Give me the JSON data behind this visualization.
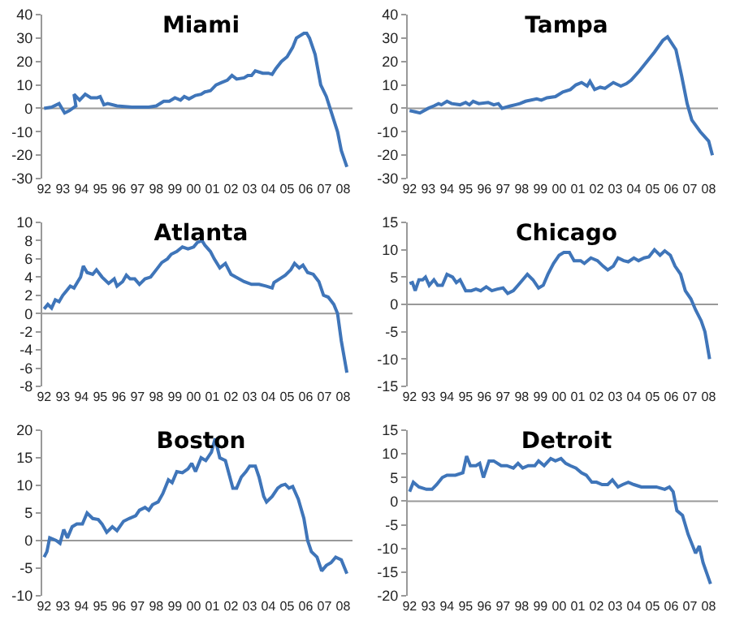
{
  "chart_data": [
    {
      "type": "line",
      "title": "Miami",
      "color": "#3f75b9",
      "grid": false,
      "ref_lines": [
        {
          "axis": "y",
          "value": 0,
          "color": "#999999"
        }
      ],
      "xlim": [
        1991.9,
        2008.5
      ],
      "ylim": [
        -30,
        40
      ],
      "yticks": [
        -30,
        -20,
        -10,
        0,
        10,
        20,
        30,
        40
      ],
      "xticks": [
        {
          "value": 1992,
          "label": "92"
        },
        {
          "value": 1993,
          "label": "93"
        },
        {
          "value": 1994,
          "label": "94"
        },
        {
          "value": 1995,
          "label": "95"
        },
        {
          "value": 1996,
          "label": "96"
        },
        {
          "value": 1997,
          "label": "97"
        },
        {
          "value": 1998,
          "label": "98"
        },
        {
          "value": 1999,
          "label": "99"
        },
        {
          "value": 2000,
          "label": "00"
        },
        {
          "value": 2001,
          "label": "01"
        },
        {
          "value": 2002,
          "label": "02"
        },
        {
          "value": 2003,
          "label": "03"
        },
        {
          "value": 2004,
          "label": "04"
        },
        {
          "value": 2005,
          "label": "05"
        },
        {
          "value": 2006,
          "label": "06"
        },
        {
          "value": 2007,
          "label": "07"
        },
        {
          "value": 2008,
          "label": "08"
        }
      ],
      "x": [
        1992,
        1992.4,
        1992.8,
        1993.1,
        1993.35,
        1993.7,
        1993.6,
        1993.9,
        1994.2,
        1994.5,
        1994.85,
        1995.0,
        1995.2,
        1995.4,
        1995.9,
        1996.7,
        1997.6,
        1998.0,
        1998.4,
        1998.7,
        1999.0,
        1999.3,
        1999.5,
        1999.75,
        2000.1,
        2000.4,
        2000.6,
        2000.9,
        2001.2,
        2001.5,
        2001.8,
        2002.05,
        2002.3,
        2002.7,
        2002.9,
        2003.1,
        2003.3,
        2003.7,
        2004.0,
        2004.2,
        2004.4,
        2004.7,
        2005.0,
        2005.3,
        2005.5,
        2005.9,
        2006.05,
        2006.2,
        2006.5,
        2006.8,
        2007.1,
        2007.3,
        2007.5,
        2007.7,
        2007.9,
        2008.2
      ],
      "values": [
        0,
        0.5,
        2,
        -2,
        -1,
        1,
        6,
        3.5,
        6,
        4.5,
        4.5,
        5,
        1.5,
        2,
        1,
        0.5,
        0.5,
        1,
        3,
        3,
        4.5,
        3.5,
        5,
        4,
        5.5,
        6,
        7,
        7.5,
        10,
        11,
        12,
        14,
        12.5,
        13,
        14,
        14,
        16,
        15,
        15,
        14.5,
        17,
        20,
        22,
        26,
        30,
        32,
        32,
        30,
        23,
        10,
        5,
        0,
        -5,
        -10,
        -18,
        -25
      ]
    },
    {
      "type": "line",
      "title": "Tampa",
      "color": "#3f75b9",
      "grid": false,
      "ref_lines": [
        {
          "axis": "y",
          "value": 0,
          "color": "#999999"
        }
      ],
      "xlim": [
        1991.9,
        2008.5
      ],
      "ylim": [
        -30,
        40
      ],
      "yticks": [
        -30,
        -20,
        -10,
        0,
        10,
        20,
        30,
        40
      ],
      "xticks": [
        {
          "value": 1992,
          "label": "92"
        },
        {
          "value": 1993,
          "label": "93"
        },
        {
          "value": 1994,
          "label": "94"
        },
        {
          "value": 1995,
          "label": "95"
        },
        {
          "value": 1996,
          "label": "96"
        },
        {
          "value": 1997,
          "label": "97"
        },
        {
          "value": 1998,
          "label": "98"
        },
        {
          "value": 1999,
          "label": "99"
        },
        {
          "value": 2000,
          "label": "00"
        },
        {
          "value": 2001,
          "label": "01"
        },
        {
          "value": 2002,
          "label": "02"
        },
        {
          "value": 2003,
          "label": "03"
        },
        {
          "value": 2004,
          "label": "04"
        },
        {
          "value": 2005,
          "label": "05"
        },
        {
          "value": 2006,
          "label": "06"
        },
        {
          "value": 2007,
          "label": "07"
        },
        {
          "value": 2008,
          "label": "08"
        }
      ],
      "x": [
        1992,
        1992.3,
        1992.55,
        1993.0,
        1993.3,
        1993.55,
        1993.7,
        1994.0,
        1994.25,
        1994.7,
        1995.0,
        1995.2,
        1995.4,
        1995.7,
        1996.2,
        1996.5,
        1996.75,
        1996.95,
        1997.4,
        1997.65,
        1997.9,
        1998.2,
        1998.8,
        1999.05,
        1999.35,
        1999.8,
        2000.2,
        2000.6,
        2000.9,
        2001.2,
        2001.5,
        2001.65,
        2001.9,
        2002.2,
        2002.45,
        2002.9,
        2003.3,
        2003.6,
        2003.85,
        2004.3,
        2004.7,
        2005.1,
        2005.55,
        2005.8,
        2006.25,
        2006.55,
        2006.85,
        2007.1,
        2007.55,
        2008.0,
        2008.2
      ],
      "values": [
        -1,
        -1.5,
        -2,
        0,
        1,
        2,
        1.5,
        3,
        2,
        1.5,
        2.5,
        1.5,
        3,
        2,
        2.5,
        1.5,
        2,
        0,
        1,
        1.5,
        2,
        3,
        4,
        3.5,
        4.5,
        5,
        7,
        8,
        10,
        11,
        9.5,
        11.5,
        8,
        9,
        8.5,
        11,
        9.5,
        10.5,
        12,
        16,
        20,
        24,
        29,
        30.5,
        25,
        14,
        2,
        -5,
        -10,
        -14,
        -20
      ]
    },
    {
      "type": "line",
      "title": "Atlanta",
      "color": "#3f75b9",
      "grid": false,
      "ref_lines": [
        {
          "axis": "y",
          "value": 0,
          "color": "#999999"
        }
      ],
      "xlim": [
        1991.9,
        2008.5
      ],
      "ylim": [
        -8,
        10
      ],
      "yticks": [
        -8,
        -6,
        -4,
        -2,
        0,
        2,
        4,
        6,
        8,
        10
      ],
      "xticks": [
        {
          "value": 1992,
          "label": "92"
        },
        {
          "value": 1993,
          "label": "93"
        },
        {
          "value": 1994,
          "label": "94"
        },
        {
          "value": 1995,
          "label": "95"
        },
        {
          "value": 1996,
          "label": "96"
        },
        {
          "value": 1997,
          "label": "97"
        },
        {
          "value": 1998,
          "label": "98"
        },
        {
          "value": 1999,
          "label": "99"
        },
        {
          "value": 2000,
          "label": "00"
        },
        {
          "value": 2001,
          "label": "01"
        },
        {
          "value": 2002,
          "label": "02"
        },
        {
          "value": 2003,
          "label": "03"
        },
        {
          "value": 2004,
          "label": "04"
        },
        {
          "value": 2005,
          "label": "05"
        },
        {
          "value": 2006,
          "label": "06"
        },
        {
          "value": 2007,
          "label": "07"
        },
        {
          "value": 2008,
          "label": "08"
        }
      ],
      "x": [
        1992,
        1992.2,
        1992.4,
        1992.6,
        1992.8,
        1993.0,
        1993.2,
        1993.4,
        1993.6,
        1993.8,
        1993.95,
        1994.1,
        1994.3,
        1994.6,
        1994.8,
        1995.1,
        1995.45,
        1995.75,
        1995.9,
        1996.2,
        1996.4,
        1996.6,
        1996.85,
        1997.1,
        1997.4,
        1997.7,
        1998.0,
        1998.3,
        1998.6,
        1998.8,
        1999.1,
        1999.4,
        1999.7,
        2000.0,
        2000.2,
        2000.45,
        2000.6,
        2000.9,
        2001.1,
        2001.4,
        2001.7,
        2002.0,
        2002.25,
        2002.7,
        2003.1,
        2003.5,
        2003.9,
        2004.2,
        2004.3,
        2004.6,
        2004.9,
        2005.2,
        2005.4,
        2005.65,
        2005.85,
        2006.1,
        2006.4,
        2006.7,
        2006.95,
        2007.2,
        2007.5,
        2007.7,
        2007.9,
        2008.2
      ],
      "values": [
        0.5,
        1,
        0.6,
        1.5,
        1.3,
        2,
        2.5,
        3,
        2.8,
        3.5,
        4,
        5.2,
        4.5,
        4.3,
        4.8,
        4,
        3.3,
        3.8,
        3,
        3.5,
        4.2,
        3.8,
        3.8,
        3.2,
        3.8,
        4,
        4.8,
        5.6,
        6,
        6.5,
        6.8,
        7.3,
        7.1,
        7.3,
        7.8,
        8,
        7.5,
        6.8,
        6,
        5,
        5.5,
        4.3,
        4,
        3.5,
        3.2,
        3.2,
        3,
        2.8,
        3.4,
        3.8,
        4.2,
        4.8,
        5.5,
        5,
        5.3,
        4.5,
        4.3,
        3.5,
        2,
        1.8,
        1,
        0,
        -3,
        -6.5
      ]
    },
    {
      "type": "line",
      "title": "Chicago",
      "color": "#3f75b9",
      "grid": false,
      "ref_lines": [
        {
          "axis": "y",
          "value": 0,
          "color": "#999999"
        }
      ],
      "xlim": [
        1991.9,
        2008.5
      ],
      "ylim": [
        -15,
        15
      ],
      "yticks": [
        -15,
        -10,
        -5,
        0,
        5,
        10,
        15
      ],
      "xticks": [
        {
          "value": 1992,
          "label": "92"
        },
        {
          "value": 1993,
          "label": "93"
        },
        {
          "value": 1994,
          "label": "94"
        },
        {
          "value": 1995,
          "label": "95"
        },
        {
          "value": 1996,
          "label": "96"
        },
        {
          "value": 1997,
          "label": "97"
        },
        {
          "value": 1998,
          "label": "98"
        },
        {
          "value": 1999,
          "label": "99"
        },
        {
          "value": 2000,
          "label": "00"
        },
        {
          "value": 2001,
          "label": "01"
        },
        {
          "value": 2002,
          "label": "02"
        },
        {
          "value": 2003,
          "label": "03"
        },
        {
          "value": 2004,
          "label": "04"
        },
        {
          "value": 2005,
          "label": "05"
        },
        {
          "value": 2006,
          "label": "06"
        },
        {
          "value": 2007,
          "label": "07"
        },
        {
          "value": 2008,
          "label": "08"
        }
      ],
      "x": [
        1992,
        1992.15,
        1992.3,
        1992.5,
        1992.7,
        1992.85,
        1993.05,
        1993.3,
        1993.5,
        1993.75,
        1994.0,
        1994.3,
        1994.5,
        1994.7,
        1995.0,
        1995.3,
        1995.55,
        1995.8,
        1996.1,
        1996.4,
        1996.7,
        1997.0,
        1997.25,
        1997.55,
        1997.8,
        1998.05,
        1998.3,
        1998.6,
        1998.9,
        1999.15,
        1999.4,
        1999.7,
        2000.0,
        2000.25,
        2000.55,
        2000.8,
        2001.15,
        2001.35,
        2001.7,
        2002.05,
        2002.35,
        2002.6,
        2002.9,
        2003.15,
        2003.45,
        2003.7,
        2004.0,
        2004.25,
        2004.55,
        2004.8,
        2005.1,
        2005.4,
        2005.65,
        2005.95,
        2006.2,
        2006.5,
        2006.75,
        2007.05,
        2007.3,
        2007.6,
        2007.8,
        2008.05
      ],
      "values": [
        3.8,
        4,
        2.5,
        4.5,
        4.5,
        5,
        3.5,
        4.5,
        3.5,
        3.5,
        5.5,
        5,
        4,
        4.5,
        2.5,
        2.5,
        2.8,
        2.5,
        3.2,
        2.5,
        2.8,
        3,
        2,
        2.5,
        3.5,
        4.5,
        5.5,
        4.5,
        3,
        3.5,
        5.5,
        7.5,
        9,
        9.5,
        9.5,
        8,
        8,
        7.5,
        8.5,
        8,
        7,
        6.3,
        7,
        8.5,
        8,
        7.8,
        8.5,
        8,
        8.5,
        8.7,
        10,
        9,
        9.8,
        9,
        7,
        5.5,
        2.5,
        1,
        -1,
        -3,
        -5,
        -10
      ]
    },
    {
      "type": "line",
      "title": "Boston",
      "color": "#3f75b9",
      "grid": false,
      "ref_lines": [
        {
          "axis": "y",
          "value": 0,
          "color": "#999999"
        }
      ],
      "xlim": [
        1991.9,
        2008.5
      ],
      "ylim": [
        -10,
        20
      ],
      "yticks": [
        -10,
        -5,
        0,
        5,
        10,
        15,
        20
      ],
      "xticks": [
        {
          "value": 1992,
          "label": "92"
        },
        {
          "value": 1993,
          "label": "93"
        },
        {
          "value": 1994,
          "label": "94"
        },
        {
          "value": 1995,
          "label": "95"
        },
        {
          "value": 1996,
          "label": "96"
        },
        {
          "value": 1997,
          "label": "97"
        },
        {
          "value": 1998,
          "label": "98"
        },
        {
          "value": 1999,
          "label": "99"
        },
        {
          "value": 2000,
          "label": "00"
        },
        {
          "value": 2001,
          "label": "01"
        },
        {
          "value": 2002,
          "label": "02"
        },
        {
          "value": 2003,
          "label": "03"
        },
        {
          "value": 2004,
          "label": "04"
        },
        {
          "value": 2005,
          "label": "05"
        },
        {
          "value": 2006,
          "label": "06"
        },
        {
          "value": 2007,
          "label": "07"
        },
        {
          "value": 2008,
          "label": "08"
        }
      ],
      "x": [
        1992,
        1992.15,
        1992.3,
        1992.65,
        1992.85,
        1993.05,
        1993.25,
        1993.5,
        1993.75,
        1994.05,
        1994.3,
        1994.6,
        1994.9,
        1995.1,
        1995.35,
        1995.65,
        1995.9,
        1996.25,
        1996.55,
        1996.9,
        1997.1,
        1997.4,
        1997.6,
        1997.8,
        1998.1,
        1998.35,
        1998.65,
        1998.85,
        1999.1,
        1999.4,
        1999.7,
        1999.9,
        2000.1,
        2000.4,
        2000.65,
        2000.95,
        2001.15,
        2001.4,
        2001.7,
        2001.9,
        2002.1,
        2002.3,
        2002.55,
        2002.8,
        2003.0,
        2003.3,
        2003.5,
        2003.75,
        2003.9,
        2004.2,
        2004.5,
        2004.7,
        2004.9,
        2005.1,
        2005.3,
        2005.6,
        2005.9,
        2006.1,
        2006.3,
        2006.6,
        2006.85,
        2007.1,
        2007.35,
        2007.6,
        2007.9,
        2008.2
      ],
      "values": [
        -3,
        -2,
        0.5,
        0,
        -0.5,
        2,
        0.5,
        2.5,
        3,
        3,
        5,
        4,
        3.8,
        3,
        1.5,
        2.5,
        1.8,
        3.5,
        4,
        4.5,
        5.5,
        6,
        5.5,
        6.5,
        7,
        8.5,
        11,
        10.5,
        12.5,
        12.3,
        13,
        14,
        12.5,
        15,
        14.5,
        16,
        18.5,
        15,
        14.5,
        12,
        9.5,
        9.5,
        11.5,
        12.5,
        13.5,
        13.5,
        11.5,
        8,
        7,
        8,
        9.5,
        10,
        10.2,
        9.5,
        9.8,
        7.5,
        4,
        0,
        -2,
        -3,
        -5.5,
        -4.5,
        -4,
        -3,
        -3.5,
        -6
      ]
    },
    {
      "type": "line",
      "title": "Detroit",
      "color": "#3f75b9",
      "grid": false,
      "ref_lines": [
        {
          "axis": "y",
          "value": 0,
          "color": "#999999"
        }
      ],
      "xlim": [
        1991.9,
        2008.5
      ],
      "ylim": [
        -20,
        15
      ],
      "yticks": [
        -20,
        -15,
        -10,
        -5,
        0,
        5,
        10,
        15
      ],
      "xticks": [
        {
          "value": 1992,
          "label": "92"
        },
        {
          "value": 1993,
          "label": "93"
        },
        {
          "value": 1994,
          "label": "94"
        },
        {
          "value": 1995,
          "label": "95"
        },
        {
          "value": 1996,
          "label": "96"
        },
        {
          "value": 1997,
          "label": "97"
        },
        {
          "value": 1998,
          "label": "98"
        },
        {
          "value": 1999,
          "label": "99"
        },
        {
          "value": 2000,
          "label": "00"
        },
        {
          "value": 2001,
          "label": "01"
        },
        {
          "value": 2002,
          "label": "02"
        },
        {
          "value": 2003,
          "label": "03"
        },
        {
          "value": 2004,
          "label": "04"
        },
        {
          "value": 2005,
          "label": "05"
        },
        {
          "value": 2006,
          "label": "06"
        },
        {
          "value": 2007,
          "label": "07"
        },
        {
          "value": 2008,
          "label": "08"
        }
      ],
      "x": [
        1992,
        1992.2,
        1992.5,
        1992.9,
        1993.2,
        1993.45,
        1993.75,
        1994.0,
        1994.45,
        1994.85,
        1995.05,
        1995.25,
        1995.55,
        1995.75,
        1995.95,
        1996.25,
        1996.5,
        1996.9,
        1997.2,
        1997.55,
        1997.8,
        1998.05,
        1998.35,
        1998.7,
        1998.9,
        1999.2,
        1999.55,
        1999.8,
        2000.1,
        2000.35,
        2000.6,
        2000.9,
        2001.2,
        2001.45,
        2001.75,
        2002.0,
        2002.3,
        2002.6,
        2002.85,
        2003.15,
        2003.4,
        2003.7,
        2004.0,
        2004.4,
        2004.8,
        2005.2,
        2005.65,
        2005.9,
        2006.1,
        2006.3,
        2006.6,
        2006.9,
        2007.1,
        2007.3,
        2007.5,
        2007.7,
        2008.1
      ],
      "values": [
        2,
        4,
        3,
        2.5,
        2.5,
        3.5,
        5,
        5.5,
        5.5,
        6,
        9.5,
        7.5,
        7.5,
        8,
        5,
        8.5,
        8.5,
        7.5,
        7.5,
        7,
        8,
        7,
        7.5,
        7.5,
        8.5,
        7.5,
        9,
        8.5,
        9,
        8,
        7.5,
        7,
        6,
        5.5,
        4,
        4,
        3.5,
        3.5,
        4.5,
        3,
        3.5,
        4,
        3.5,
        3,
        3,
        3,
        2.5,
        3,
        2,
        -2,
        -3,
        -7,
        -9,
        -11,
        -9.5,
        -13,
        -17.5
      ]
    }
  ]
}
